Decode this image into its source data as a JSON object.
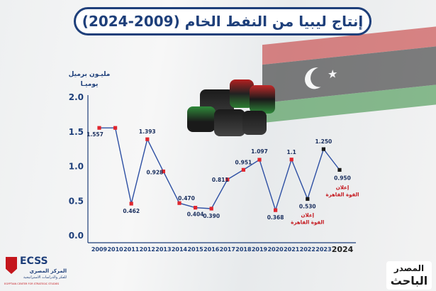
{
  "title": "إنتاج ليبيا من النفط الخام  (2009-2024)",
  "unit_label": {
    "line1": "مليـون برميل",
    "line2": "يوميـا"
  },
  "chart_data": {
    "type": "line",
    "title": "إنتاج ليبيا من النفط الخام  (2009-2024)",
    "ylabel": "مليـون برميل يوميـا",
    "xlabel": "",
    "ylim": [
      0,
      2.0
    ],
    "yticks": [
      "0.0",
      "0.5",
      "1.0",
      "1.5",
      "2.0"
    ],
    "grid": false,
    "categories": [
      "2009",
      "2010",
      "2011",
      "2012",
      "2013",
      "2014",
      "2015",
      "2016",
      "2017",
      "2018",
      "2019",
      "2020",
      "2021",
      "2022",
      "2023",
      "2024"
    ],
    "series": [
      {
        "values": [
          1.557,
          1.557,
          0.462,
          1.393,
          0.928,
          0.47,
          0.404,
          0.39,
          0.811,
          0.951,
          1.097,
          0.368,
          1.1,
          0.53,
          1.25,
          0.95
        ],
        "labels": [
          "1.557",
          "",
          "0.462",
          "1.393",
          "0.928",
          "0.470",
          "0.404",
          "0.390",
          "0.811",
          "0.951",
          "1.097",
          "0.368",
          "1.1",
          "0.530",
          "1.250",
          "0.950"
        ]
      }
    ],
    "annotations": [
      {
        "year": "2022",
        "line1": "إعلان",
        "line2": "القوة القاهرة"
      },
      {
        "year": "2024",
        "line1": "إعلان",
        "line2": "القوة القاهرة"
      }
    ],
    "colors": {
      "line": "#2d4fa3",
      "marker": "#e0262e",
      "marker_dark": "#1a1a1a",
      "axis": "#1e3f7a",
      "annotation": "#c4161c"
    }
  },
  "source": {
    "line1": "المصدر",
    "line2": "الباحث"
  },
  "logo": {
    "name": "ECSS",
    "arabic_line1": "المركز المصري",
    "arabic_line2": "للفكر والدراسات الاستراتيجية",
    "english": "EGYPTIAN CENTER FOR STRATEGIC STUDIES"
  }
}
